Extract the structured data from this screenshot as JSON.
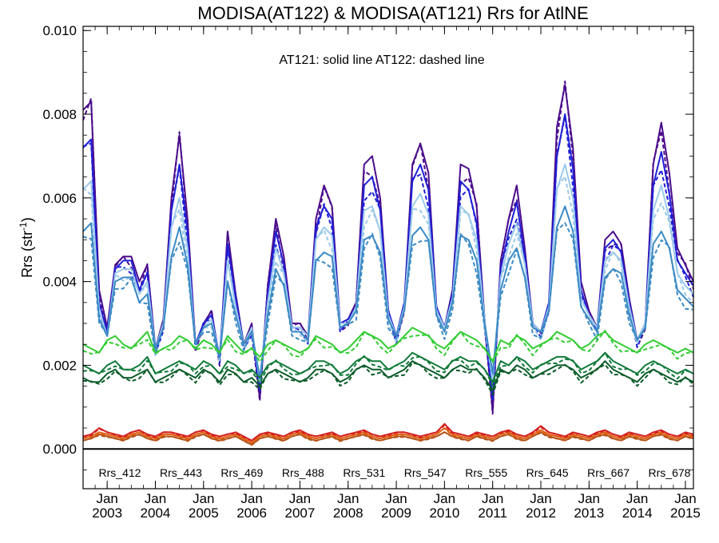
{
  "chart_data": {
    "type": "line",
    "title": "MODISA(AT122) & MODISA(AT121)  Rrs for AtlNE",
    "ylabel": "Rrs (str",
    "ylabel_sup": "-1",
    "ylabel_close": ")",
    "annotation": "AT121: solid line   AT122: dashed line",
    "ylim": [
      -0.00095,
      0.0101
    ],
    "xlim": [
      "2002-07",
      "2015-03"
    ],
    "y_ticks": [
      {
        "value": 0.0,
        "label": "0.000"
      },
      {
        "value": 0.002,
        "label": "0.002"
      },
      {
        "value": 0.004,
        "label": "0.004"
      },
      {
        "value": 0.006,
        "label": "0.006"
      },
      {
        "value": 0.008,
        "label": "0.008"
      },
      {
        "value": 0.01,
        "label": "0.010"
      }
    ],
    "x_ticks": [
      {
        "date": "2003-01",
        "label1": "Jan",
        "label2": "2003"
      },
      {
        "date": "2004-01",
        "label1": "Jan",
        "label2": "2004"
      },
      {
        "date": "2005-01",
        "label1": "Jan",
        "label2": "2005"
      },
      {
        "date": "2006-01",
        "label1": "Jan",
        "label2": "2006"
      },
      {
        "date": "2007-01",
        "label1": "Jan",
        "label2": "2007"
      },
      {
        "date": "2008-01",
        "label1": "Jan",
        "label2": "2008"
      },
      {
        "date": "2009-01",
        "label1": "Jan",
        "label2": "2009"
      },
      {
        "date": "2010-01",
        "label1": "Jan",
        "label2": "2010"
      },
      {
        "date": "2011-01",
        "label1": "Jan",
        "label2": "2011"
      },
      {
        "date": "2012-01",
        "label1": "Jan",
        "label2": "2012"
      },
      {
        "date": "2013-01",
        "label1": "Jan",
        "label2": "2013"
      },
      {
        "date": "2014-01",
        "label1": "Jan",
        "label2": "2014"
      },
      {
        "date": "2015-01",
        "label1": "Jan",
        "label2": "2015"
      }
    ],
    "zero_line": 0.0,
    "legend_placement": "bottom",
    "x": [
      "2002-07",
      "2002-09",
      "2002-11",
      "2003-01",
      "2003-03",
      "2003-05",
      "2003-07",
      "2003-09",
      "2003-11",
      "2004-01",
      "2004-03",
      "2004-05",
      "2004-07",
      "2004-09",
      "2004-11",
      "2005-01",
      "2005-03",
      "2005-05",
      "2005-07",
      "2005-09",
      "2005-11",
      "2006-01",
      "2006-03",
      "2006-05",
      "2006-07",
      "2006-09",
      "2006-11",
      "2007-01",
      "2007-03",
      "2007-05",
      "2007-07",
      "2007-09",
      "2007-11",
      "2008-01",
      "2008-03",
      "2008-05",
      "2008-07",
      "2008-09",
      "2008-11",
      "2009-01",
      "2009-03",
      "2009-05",
      "2009-07",
      "2009-09",
      "2009-11",
      "2010-01",
      "2010-03",
      "2010-05",
      "2010-07",
      "2010-09",
      "2010-11",
      "2011-01",
      "2011-03",
      "2011-05",
      "2011-07",
      "2011-09",
      "2011-11",
      "2012-01",
      "2012-03",
      "2012-05",
      "2012-07",
      "2012-09",
      "2012-11",
      "2013-01",
      "2013-03",
      "2013-05",
      "2013-07",
      "2013-09",
      "2013-11",
      "2014-01",
      "2014-03",
      "2014-05",
      "2014-07",
      "2014-09",
      "2014-11",
      "2015-01",
      "2015-03"
    ],
    "series": [
      {
        "name": "Rrs_412",
        "color": "#4b0c8c",
        "values": [
          0.0081,
          0.0083,
          0.0038,
          0.0029,
          0.0044,
          0.0046,
          0.0046,
          0.004,
          0.0044,
          0.0024,
          0.0031,
          0.006,
          0.0075,
          0.0055,
          0.0025,
          0.003,
          0.0033,
          0.0021,
          0.0052,
          0.0037,
          0.0025,
          0.003,
          0.0012,
          0.0039,
          0.0055,
          0.0046,
          0.003,
          0.003,
          0.0027,
          0.0055,
          0.0063,
          0.0058,
          0.003,
          0.0031,
          0.0035,
          0.0068,
          0.007,
          0.006,
          0.0033,
          0.0027,
          0.0035,
          0.0068,
          0.0073,
          0.0066,
          0.0034,
          0.0029,
          0.0038,
          0.0068,
          0.0067,
          0.0058,
          0.0031,
          0.0009,
          0.0045,
          0.0055,
          0.0063,
          0.0048,
          0.003,
          0.0028,
          0.0035,
          0.0077,
          0.0087,
          0.0072,
          0.004,
          0.0033,
          0.0029,
          0.005,
          0.0052,
          0.0049,
          0.0036,
          0.0026,
          0.003,
          0.0068,
          0.0078,
          0.0066,
          0.0048,
          0.0044,
          0.004
        ]
      },
      {
        "name": "Rrs_443",
        "color": "#1f1fd6",
        "values": [
          0.0072,
          0.0074,
          0.0035,
          0.0028,
          0.0043,
          0.0045,
          0.0045,
          0.0038,
          0.0042,
          0.0024,
          0.003,
          0.0057,
          0.0068,
          0.0052,
          0.0025,
          0.003,
          0.0032,
          0.0022,
          0.0049,
          0.0036,
          0.0025,
          0.0029,
          0.0014,
          0.0037,
          0.0052,
          0.0044,
          0.0029,
          0.0029,
          0.0027,
          0.0053,
          0.0058,
          0.0055,
          0.003,
          0.0031,
          0.0034,
          0.0063,
          0.0065,
          0.0057,
          0.0033,
          0.0027,
          0.0035,
          0.0064,
          0.0068,
          0.0062,
          0.0034,
          0.0029,
          0.0037,
          0.0064,
          0.0062,
          0.0054,
          0.0031,
          0.0012,
          0.0043,
          0.0052,
          0.0059,
          0.0046,
          0.003,
          0.0028,
          0.0035,
          0.007,
          0.008,
          0.0067,
          0.0038,
          0.0032,
          0.0029,
          0.0048,
          0.005,
          0.0047,
          0.0035,
          0.0026,
          0.003,
          0.0063,
          0.0071,
          0.0061,
          0.0045,
          0.0042,
          0.0039
        ]
      },
      {
        "name": "Rrs_469",
        "color": "#9bcaea",
        "values": [
          0.0062,
          0.0064,
          0.0033,
          0.0027,
          0.0042,
          0.0043,
          0.0043,
          0.0037,
          0.004,
          0.0024,
          0.003,
          0.0053,
          0.006,
          0.0048,
          0.0025,
          0.0029,
          0.0031,
          0.0022,
          0.0045,
          0.0034,
          0.0025,
          0.0029,
          0.0016,
          0.0035,
          0.0048,
          0.0042,
          0.0029,
          0.0029,
          0.0027,
          0.005,
          0.0053,
          0.0051,
          0.003,
          0.003,
          0.0034,
          0.0057,
          0.0058,
          0.0052,
          0.0032,
          0.0027,
          0.0034,
          0.0058,
          0.0061,
          0.0056,
          0.0033,
          0.0029,
          0.0036,
          0.0058,
          0.0056,
          0.005,
          0.0031,
          0.0016,
          0.0041,
          0.0049,
          0.0054,
          0.0044,
          0.003,
          0.0028,
          0.0034,
          0.0062,
          0.0068,
          0.006,
          0.0036,
          0.0032,
          0.0029,
          0.0045,
          0.0047,
          0.0045,
          0.0034,
          0.0026,
          0.003,
          0.0057,
          0.0063,
          0.0055,
          0.0042,
          0.0039,
          0.0037
        ]
      },
      {
        "name": "Rrs_488",
        "color": "#3b8ac4",
        "values": [
          0.0052,
          0.0054,
          0.0031,
          0.0027,
          0.004,
          0.0041,
          0.0041,
          0.0035,
          0.0037,
          0.0024,
          0.0029,
          0.0046,
          0.0053,
          0.0044,
          0.0025,
          0.0029,
          0.003,
          0.0022,
          0.004,
          0.0032,
          0.0025,
          0.0028,
          0.0017,
          0.0032,
          0.0043,
          0.0039,
          0.0028,
          0.0028,
          0.0026,
          0.0045,
          0.0047,
          0.0046,
          0.0029,
          0.003,
          0.0033,
          0.005,
          0.0051,
          0.0047,
          0.0031,
          0.0027,
          0.0033,
          0.0051,
          0.0053,
          0.005,
          0.0032,
          0.0028,
          0.0035,
          0.0051,
          0.005,
          0.0045,
          0.003,
          0.0018,
          0.0038,
          0.0045,
          0.0048,
          0.0041,
          0.0029,
          0.0028,
          0.0033,
          0.0053,
          0.0058,
          0.0052,
          0.0034,
          0.0031,
          0.0028,
          0.0041,
          0.0043,
          0.0042,
          0.0032,
          0.0026,
          0.0029,
          0.0049,
          0.0052,
          0.0048,
          0.0038,
          0.0036,
          0.0034
        ]
      },
      {
        "name": "Rrs_531",
        "color": "#33cc33",
        "values": [
          0.0025,
          0.0024,
          0.0023,
          0.0026,
          0.0027,
          0.0025,
          0.0024,
          0.0026,
          0.0028,
          0.0023,
          0.0024,
          0.0025,
          0.0027,
          0.0026,
          0.0024,
          0.0026,
          0.0025,
          0.0023,
          0.0027,
          0.0025,
          0.0023,
          0.0024,
          0.0022,
          0.0025,
          0.0026,
          0.0025,
          0.0024,
          0.0023,
          0.0024,
          0.0027,
          0.0026,
          0.0025,
          0.0023,
          0.0024,
          0.0026,
          0.0028,
          0.0027,
          0.0026,
          0.0024,
          0.0025,
          0.0027,
          0.0029,
          0.0028,
          0.0027,
          0.0025,
          0.0024,
          0.0026,
          0.0028,
          0.0027,
          0.0026,
          0.0024,
          0.0021,
          0.0026,
          0.0025,
          0.0027,
          0.0026,
          0.0024,
          0.0025,
          0.0026,
          0.0028,
          0.0027,
          0.0026,
          0.0024,
          0.0025,
          0.0027,
          0.0028,
          0.0026,
          0.0025,
          0.0024,
          0.0023,
          0.0025,
          0.0026,
          0.0025,
          0.0024,
          0.0023,
          0.0024,
          0.0023
        ]
      },
      {
        "name": "Rrs_547",
        "color": "#117a3a",
        "values": [
          0.002,
          0.0019,
          0.0018,
          0.002,
          0.0021,
          0.0019,
          0.0019,
          0.002,
          0.0022,
          0.0018,
          0.0019,
          0.002,
          0.0021,
          0.002,
          0.0019,
          0.0021,
          0.002,
          0.0018,
          0.0021,
          0.002,
          0.0018,
          0.0019,
          0.0017,
          0.002,
          0.0021,
          0.002,
          0.0019,
          0.0018,
          0.0019,
          0.0021,
          0.0021,
          0.002,
          0.0018,
          0.0019,
          0.0021,
          0.0022,
          0.0021,
          0.0021,
          0.0019,
          0.002,
          0.0021,
          0.0023,
          0.0022,
          0.0021,
          0.002,
          0.0019,
          0.0021,
          0.0022,
          0.0021,
          0.0021,
          0.0019,
          0.0016,
          0.0021,
          0.002,
          0.0022,
          0.0021,
          0.0019,
          0.002,
          0.0021,
          0.0022,
          0.0022,
          0.0021,
          0.0019,
          0.002,
          0.0021,
          0.0023,
          0.0021,
          0.002,
          0.0019,
          0.0018,
          0.002,
          0.0021,
          0.002,
          0.0019,
          0.0018,
          0.0019,
          0.0018
        ]
      },
      {
        "name": "Rrs_555",
        "color": "#0c5c2a",
        "values": [
          0.0017,
          0.0016,
          0.0016,
          0.0018,
          0.0019,
          0.0017,
          0.0017,
          0.0018,
          0.0019,
          0.0016,
          0.0017,
          0.0018,
          0.0019,
          0.0018,
          0.0017,
          0.0019,
          0.0018,
          0.0016,
          0.0019,
          0.0018,
          0.0016,
          0.0017,
          0.0015,
          0.0018,
          0.0019,
          0.0018,
          0.0017,
          0.0016,
          0.0017,
          0.0019,
          0.0019,
          0.0018,
          0.0016,
          0.0017,
          0.0019,
          0.002,
          0.0019,
          0.0019,
          0.0017,
          0.0018,
          0.0019,
          0.0021,
          0.002,
          0.0019,
          0.0018,
          0.0017,
          0.0019,
          0.002,
          0.0019,
          0.0019,
          0.0017,
          0.0014,
          0.0019,
          0.0018,
          0.002,
          0.0019,
          0.0017,
          0.0018,
          0.0019,
          0.002,
          0.002,
          0.0019,
          0.0017,
          0.0018,
          0.0019,
          0.0021,
          0.0019,
          0.0018,
          0.0017,
          0.0016,
          0.0018,
          0.0019,
          0.0018,
          0.0017,
          0.0016,
          0.0017,
          0.0016
        ]
      },
      {
        "name": "Rrs_645",
        "color": "#b5541b",
        "values": [
          0.0002,
          0.00025,
          0.00035,
          0.0003,
          0.00025,
          0.0002,
          0.0003,
          0.00035,
          0.00025,
          0.0002,
          0.0003,
          0.0003,
          0.00025,
          0.0002,
          0.0003,
          0.00035,
          0.00025,
          0.0002,
          0.00025,
          0.0003,
          0.0002,
          0.0001,
          0.00025,
          0.0003,
          0.00025,
          0.0002,
          0.0003,
          0.00035,
          0.00025,
          0.0002,
          0.00025,
          0.0003,
          0.0002,
          0.00025,
          0.0003,
          0.00035,
          0.00025,
          0.0002,
          0.00025,
          0.0003,
          0.0003,
          0.00025,
          0.0002,
          0.00025,
          0.0003,
          0.0004,
          0.0003,
          0.00025,
          0.0002,
          0.0003,
          0.00025,
          0.0002,
          0.0003,
          0.00035,
          0.00025,
          0.0002,
          0.0003,
          0.0004,
          0.0003,
          0.00025,
          0.0002,
          0.0003,
          0.00025,
          0.0002,
          0.0003,
          0.00035,
          0.00025,
          0.0002,
          0.0003,
          0.00025,
          0.0002,
          0.0003,
          0.00035,
          0.00025,
          0.0002,
          0.0003,
          0.00025
        ]
      },
      {
        "name": "Rrs_667",
        "color": "#e06010",
        "values": [
          0.00025,
          0.0003,
          0.0004,
          0.00035,
          0.0003,
          0.00025,
          0.00035,
          0.0004,
          0.0003,
          0.00025,
          0.00035,
          0.00035,
          0.0003,
          0.00025,
          0.00035,
          0.0004,
          0.0003,
          0.00025,
          0.0003,
          0.00035,
          0.00025,
          0.00015,
          0.0003,
          0.00035,
          0.0003,
          0.00025,
          0.00035,
          0.0004,
          0.0003,
          0.00025,
          0.0003,
          0.00035,
          0.00025,
          0.0003,
          0.00035,
          0.0004,
          0.0003,
          0.00025,
          0.0003,
          0.00035,
          0.00035,
          0.0003,
          0.00025,
          0.0003,
          0.00035,
          0.0005,
          0.00035,
          0.0003,
          0.00025,
          0.00035,
          0.0003,
          0.00025,
          0.00035,
          0.0004,
          0.0003,
          0.00025,
          0.00035,
          0.00045,
          0.00035,
          0.0003,
          0.00025,
          0.00035,
          0.0003,
          0.00025,
          0.00035,
          0.0004,
          0.0003,
          0.00025,
          0.00035,
          0.0003,
          0.00025,
          0.00035,
          0.0004,
          0.0003,
          0.00025,
          0.00035,
          0.0003
        ]
      },
      {
        "name": "Rrs_678",
        "color": "#d42020",
        "values": [
          0.0003,
          0.00035,
          0.0005,
          0.0004,
          0.00035,
          0.0003,
          0.0004,
          0.00045,
          0.00035,
          0.0003,
          0.0004,
          0.0004,
          0.00035,
          0.0003,
          0.0004,
          0.00045,
          0.00035,
          0.0003,
          0.00035,
          0.0004,
          0.0003,
          0.0002,
          0.00035,
          0.0004,
          0.00035,
          0.0003,
          0.0004,
          0.00045,
          0.00035,
          0.0003,
          0.00035,
          0.0004,
          0.0003,
          0.00035,
          0.0004,
          0.00045,
          0.00035,
          0.0003,
          0.00035,
          0.0004,
          0.0004,
          0.00035,
          0.0003,
          0.00035,
          0.0004,
          0.0006,
          0.0004,
          0.00035,
          0.0003,
          0.0004,
          0.00035,
          0.0003,
          0.0004,
          0.00045,
          0.00035,
          0.0003,
          0.0004,
          0.00055,
          0.0004,
          0.00035,
          0.0003,
          0.0004,
          0.00035,
          0.0003,
          0.0004,
          0.00045,
          0.00035,
          0.0003,
          0.0004,
          0.00035,
          0.0003,
          0.0004,
          0.00045,
          0.00035,
          0.0003,
          0.0004,
          0.00035
        ]
      }
    ]
  }
}
